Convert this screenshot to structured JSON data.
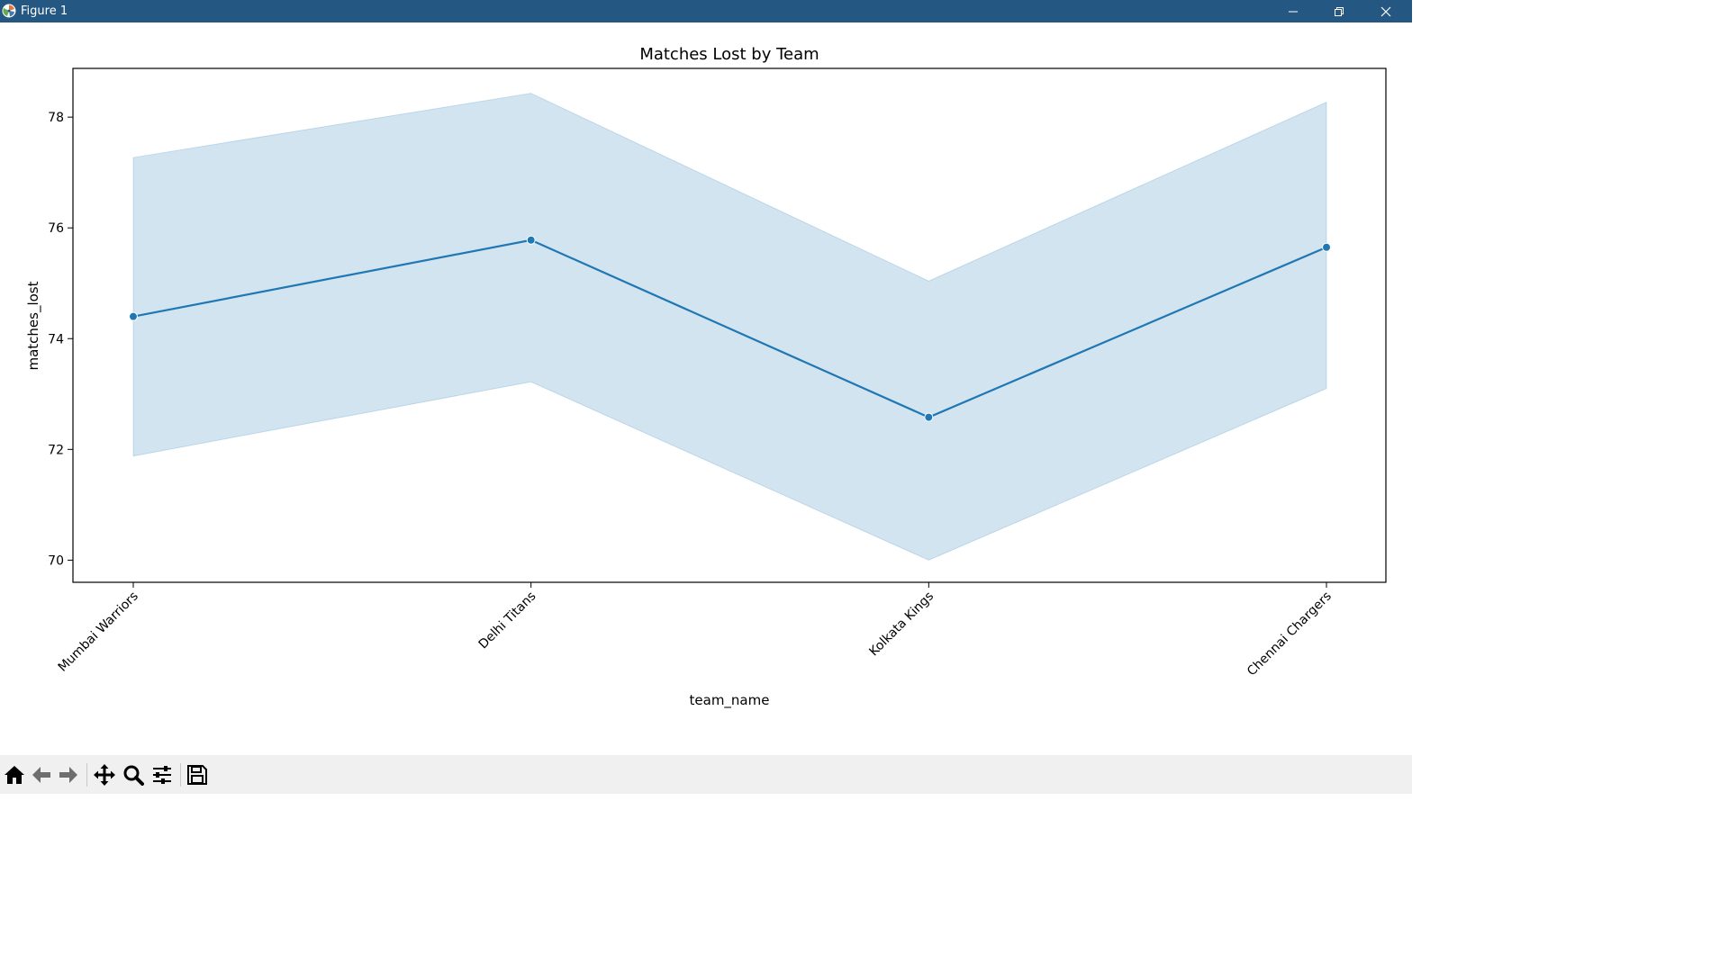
{
  "window": {
    "title": "Figure 1",
    "titlebar_color": "#245781",
    "controls": [
      "minimize-icon",
      "restore-icon",
      "close-icon"
    ]
  },
  "toolbar": {
    "tools": [
      "home-icon",
      "back-arrow-icon",
      "forward-arrow-icon",
      "pan-icon",
      "zoom-icon",
      "configure-subplots-icon",
      "save-icon"
    ]
  },
  "chart_data": {
    "type": "line",
    "title": "Matches Lost by Team",
    "xlabel": "team_name",
    "ylabel": "matches_lost",
    "categories": [
      "Mumbai Warriors",
      "Delhi Titans",
      "Kolkata Kings",
      "Chennai Chargers"
    ],
    "series": [
      {
        "values": [
          74.4,
          75.78,
          72.58,
          75.65
        ],
        "ci_lower": [
          71.88,
          73.22,
          70.0,
          73.1
        ],
        "ci_upper": [
          77.27,
          78.43,
          75.04,
          78.27
        ]
      }
    ],
    "ylim": [
      69.6,
      78.88
    ],
    "yticks": [
      70,
      72,
      74,
      76,
      78
    ],
    "line_color": "#1f77b4",
    "band_color": "#1f77b4",
    "markers": true,
    "grid": false
  }
}
